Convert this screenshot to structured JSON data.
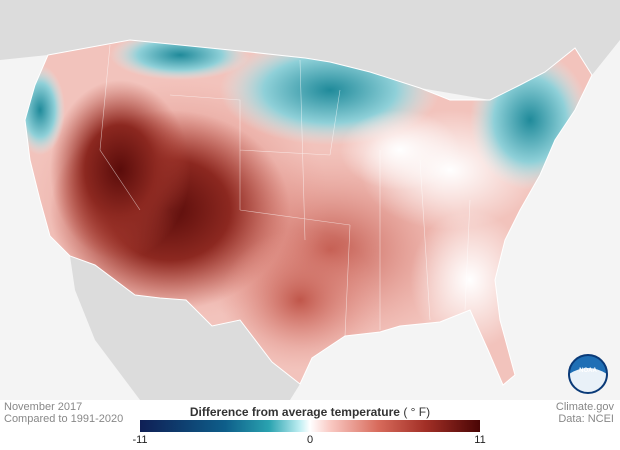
{
  "map": {
    "title": "Difference from average temperature",
    "unit": "( ° F)",
    "date": "November 2017",
    "baseline": "Compared to 1991-2020",
    "credit": "Climate.gov",
    "source": "Data: NCEI",
    "logo_text": "NOAA",
    "legend": {
      "min": "-11",
      "mid": "0",
      "max": "11"
    },
    "colors": {
      "cold": "#0f1f55",
      "neutral": "#ffffff",
      "warm": "#4a0505",
      "background": "#f4f4f4",
      "neighbor_land": "#dcdcdc"
    }
  }
}
